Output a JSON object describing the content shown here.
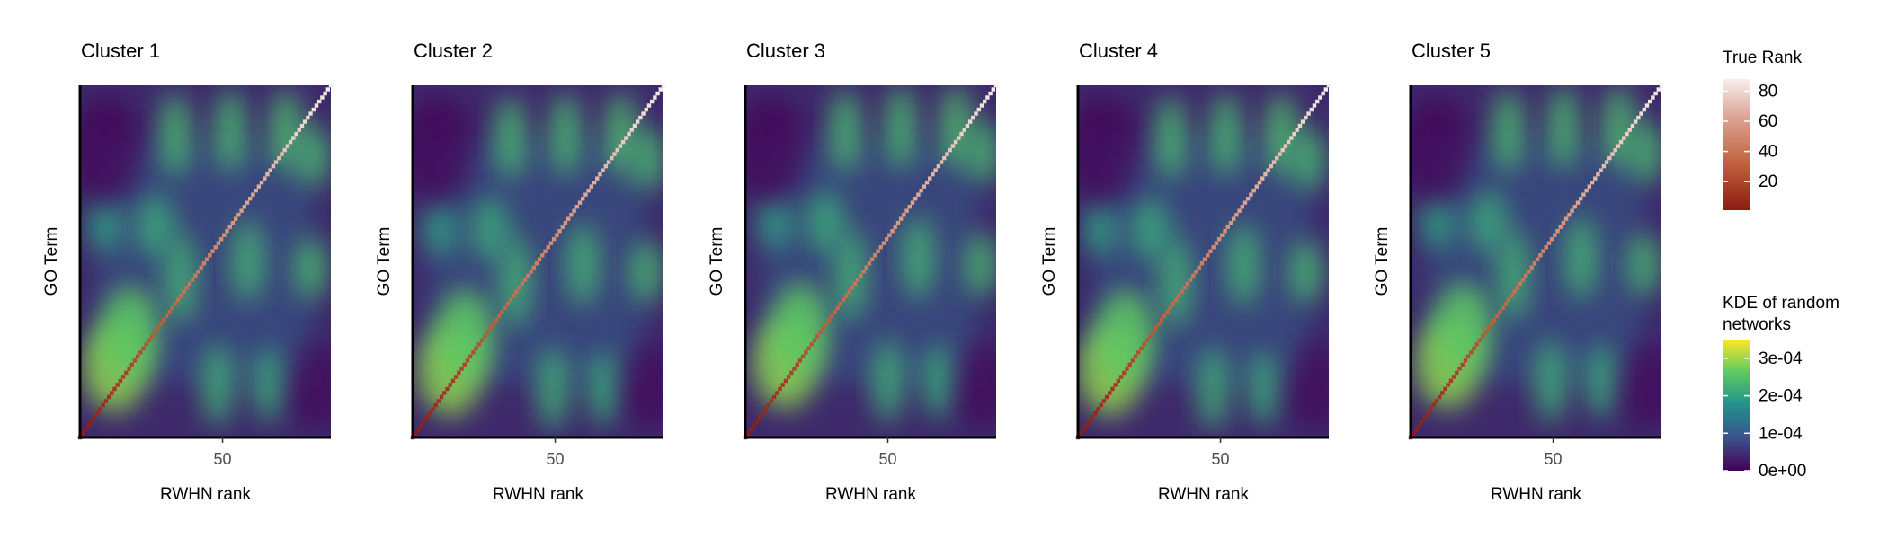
{
  "chart_data": [
    {
      "type": "heatmap",
      "title": "Cluster 1",
      "xlabel": "RWHN rank",
      "ylabel": "GO Term",
      "xticks": [
        50
      ],
      "xlim": [
        0,
        88
      ],
      "ylim": [
        0,
        88
      ],
      "diagonal_true_rank": [
        1,
        88
      ],
      "style": "a"
    },
    {
      "type": "heatmap",
      "title": "Cluster 2",
      "xlabel": "RWHN rank",
      "ylabel": "GO Term",
      "xticks": [
        50
      ],
      "xlim": [
        0,
        88
      ],
      "ylim": [
        0,
        88
      ],
      "diagonal_true_rank": [
        1,
        88
      ],
      "style": "b"
    },
    {
      "type": "heatmap",
      "title": "Cluster 3",
      "xlabel": "RWHN rank",
      "ylabel": "GO Term",
      "xticks": [
        50
      ],
      "xlim": [
        0,
        88
      ],
      "ylim": [
        0,
        88
      ],
      "diagonal_true_rank": [
        1,
        88
      ],
      "style": "c"
    },
    {
      "type": "heatmap",
      "title": "Cluster 4",
      "xlabel": "RWHN rank",
      "ylabel": "GO Term",
      "xticks": [
        50
      ],
      "xlim": [
        0,
        88
      ],
      "ylim": [
        0,
        88
      ],
      "diagonal_true_rank": [
        1,
        88
      ],
      "style": "d"
    },
    {
      "type": "heatmap",
      "title": "Cluster 5",
      "xlabel": "RWHN rank",
      "ylabel": "GO Term",
      "xticks": [
        50
      ],
      "xlim": [
        0,
        88
      ],
      "ylim": [
        0,
        88
      ],
      "diagonal_true_rank": [
        1,
        88
      ],
      "style": "e"
    }
  ],
  "legends": {
    "true_rank": {
      "title": "True Rank",
      "ticks": [
        80,
        60,
        40,
        20
      ],
      "range": [
        1,
        88
      ],
      "colors": [
        "#8b1a10",
        "#c0603e",
        "#dba391",
        "#f6eeee"
      ]
    },
    "kde": {
      "title_line1": "KDE of random",
      "title_line2": "networks",
      "ticks": [
        "3e-04",
        "2e-04",
        "1e-04",
        "0e+00"
      ],
      "values": [
        0.0003,
        0.0002,
        0.0001,
        0
      ],
      "max": 0.00035,
      "colors": [
        "#440154",
        "#3b528b",
        "#21908c",
        "#5dc963",
        "#fde725"
      ]
    }
  }
}
